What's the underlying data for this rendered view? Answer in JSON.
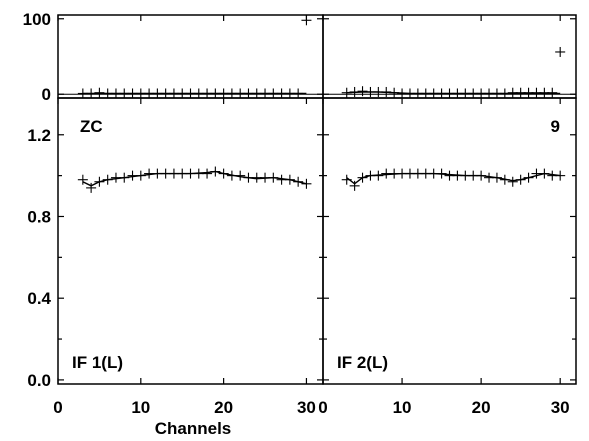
{
  "chart_data": {
    "type": "scatter",
    "xlabel": "Channels",
    "xlim": [
      0,
      32
    ],
    "xticks": [
      0,
      10,
      20,
      30
    ],
    "panels": [
      {
        "id": "IF1",
        "top": {
          "ylim": [
            -5,
            105
          ],
          "yticks": [
            0,
            100
          ],
          "points": {
            "x": [
              3,
              4,
              5,
              6,
              7,
              8,
              9,
              10,
              11,
              12,
              13,
              14,
              15,
              16,
              17,
              18,
              19,
              20,
              21,
              22,
              23,
              24,
              25,
              26,
              27,
              28,
              29,
              30
            ],
            "y": [
              1,
              1,
              2,
              1,
              1,
              1,
              1,
              1,
              1,
              1,
              1,
              1,
              1,
              1,
              1,
              1,
              1,
              1,
              1,
              1,
              1,
              1,
              1,
              1,
              1,
              1,
              1,
              98
            ]
          },
          "model": {
            "x": [
              3,
              6,
              10,
              15,
              20,
              25,
              30
            ],
            "y": [
              1,
              1,
              1,
              1,
              1,
              1,
              1
            ]
          }
        },
        "bottom": {
          "ylim": [
            -0.02,
            1.38
          ],
          "yticks": [
            0.0,
            0.4,
            0.8,
            1.2
          ],
          "ytick_labels": [
            "0.0",
            "0.4",
            "0.8",
            "1.2"
          ],
          "labels": {
            "top_left": "ZC",
            "top_right": "",
            "bottom_left": "IF 1(L)"
          },
          "points": {
            "x": [
              3,
              4,
              5,
              6,
              7,
              8,
              9,
              10,
              11,
              12,
              13,
              14,
              15,
              16,
              17,
              18,
              19,
              20,
              21,
              22,
              23,
              24,
              25,
              26,
              27,
              28,
              29,
              30
            ],
            "y": [
              0.98,
              0.94,
              0.97,
              0.98,
              0.99,
              0.99,
              1.0,
              1.0,
              1.01,
              1.01,
              1.01,
              1.01,
              1.01,
              1.01,
              1.01,
              1.01,
              1.02,
              1.01,
              1.0,
              1.0,
              0.99,
              0.99,
              0.99,
              0.99,
              0.98,
              0.98,
              0.97,
              0.96
            ]
          },
          "model": {
            "x": [
              3,
              4,
              5,
              6,
              8,
              10,
              12,
              14,
              16,
              18,
              19,
              20,
              22,
              24,
              26,
              28,
              30
            ],
            "y": [
              0.97,
              0.95,
              0.97,
              0.98,
              0.99,
              1.0,
              1.01,
              1.01,
              1.01,
              1.015,
              1.02,
              1.01,
              0.995,
              0.985,
              0.99,
              0.98,
              0.96
            ]
          }
        }
      },
      {
        "id": "IF2",
        "top": {
          "ylim": [
            -5,
            105
          ],
          "yticks": [
            0,
            100
          ],
          "points": {
            "x": [
              3,
              4,
              5,
              6,
              7,
              8,
              9,
              10,
              11,
              12,
              13,
              14,
              15,
              16,
              17,
              18,
              19,
              20,
              21,
              22,
              23,
              24,
              25,
              26,
              27,
              28,
              29,
              30
            ],
            "y": [
              2,
              3,
              4,
              3,
              3,
              3,
              2,
              1,
              1,
              1,
              1,
              1,
              1,
              1,
              1,
              1,
              1,
              1,
              1,
              1,
              1,
              2,
              2,
              2,
              2,
              2,
              2,
              56
            ]
          },
          "model": {
            "x": [
              3,
              5,
              7,
              9,
              11,
              15,
              20,
              25,
              30
            ],
            "y": [
              2,
              3,
              3,
              2,
              1,
              1,
              1,
              1,
              1
            ]
          }
        },
        "bottom": {
          "ylim": [
            -0.02,
            1.38
          ],
          "yticks": [
            0.0,
            0.4,
            0.8,
            1.2
          ],
          "labels": {
            "top_left": "",
            "top_right": "9",
            "bottom_left": "IF 2(L)"
          },
          "points": {
            "x": [
              3,
              4,
              5,
              6,
              7,
              8,
              9,
              10,
              11,
              12,
              13,
              14,
              15,
              16,
              17,
              18,
              19,
              20,
              21,
              22,
              23,
              24,
              25,
              26,
              27,
              28,
              29,
              30
            ],
            "y": [
              0.98,
              0.95,
              0.99,
              1.0,
              1.0,
              1.01,
              1.01,
              1.01,
              1.01,
              1.01,
              1.01,
              1.01,
              1.01,
              1.0,
              1.0,
              1.0,
              1.0,
              1.0,
              0.99,
              0.99,
              0.98,
              0.97,
              0.98,
              0.99,
              1.01,
              1.01,
              1.0,
              1.0
            ]
          },
          "model": {
            "x": [
              3,
              4,
              5,
              6,
              8,
              10,
              12,
              14,
              16,
              18,
              20,
              22,
              24,
              25,
              26,
              28,
              30
            ],
            "y": [
              0.99,
              0.96,
              0.99,
              1.0,
              1.005,
              1.01,
              1.01,
              1.01,
              1.005,
              1.0,
              1.0,
              0.99,
              0.975,
              0.98,
              0.99,
              1.01,
              1.0
            ]
          }
        }
      }
    ]
  }
}
